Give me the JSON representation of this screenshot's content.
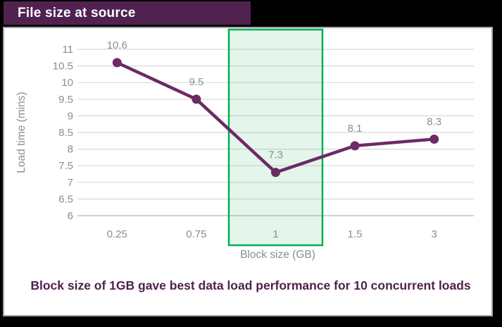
{
  "header": {
    "title": "File size at source",
    "banner_color": "#512150"
  },
  "caption": {
    "text": "Block size of 1GB gave best data load performance for 10 concurrent loads",
    "color": "#4f2150"
  },
  "chart_data": {
    "type": "line",
    "title": "",
    "categories": [
      "0.25",
      "0.75",
      "1",
      "1.5",
      "3"
    ],
    "values": [
      10.6,
      9.5,
      7.3,
      8.1,
      8.3
    ],
    "xlabel": "Block size (GB)",
    "ylabel": "Load time (mins)",
    "ylim": [
      6,
      11
    ],
    "ytick_step": 0.5,
    "grid": "horizontal",
    "legend": "none",
    "highlight": {
      "category": "1",
      "meaning": "best block size column highlighted"
    },
    "colors": {
      "line": "#6d2a64",
      "marker": "#6d2a64",
      "highlight_border": "#00b050",
      "highlight_fill": "#2eb06a",
      "gridline": "#d9d9d9",
      "axis_line": "#c4c4c4",
      "tick_text": "#8a8e91",
      "data_label_text": "#8a8e91"
    }
  }
}
